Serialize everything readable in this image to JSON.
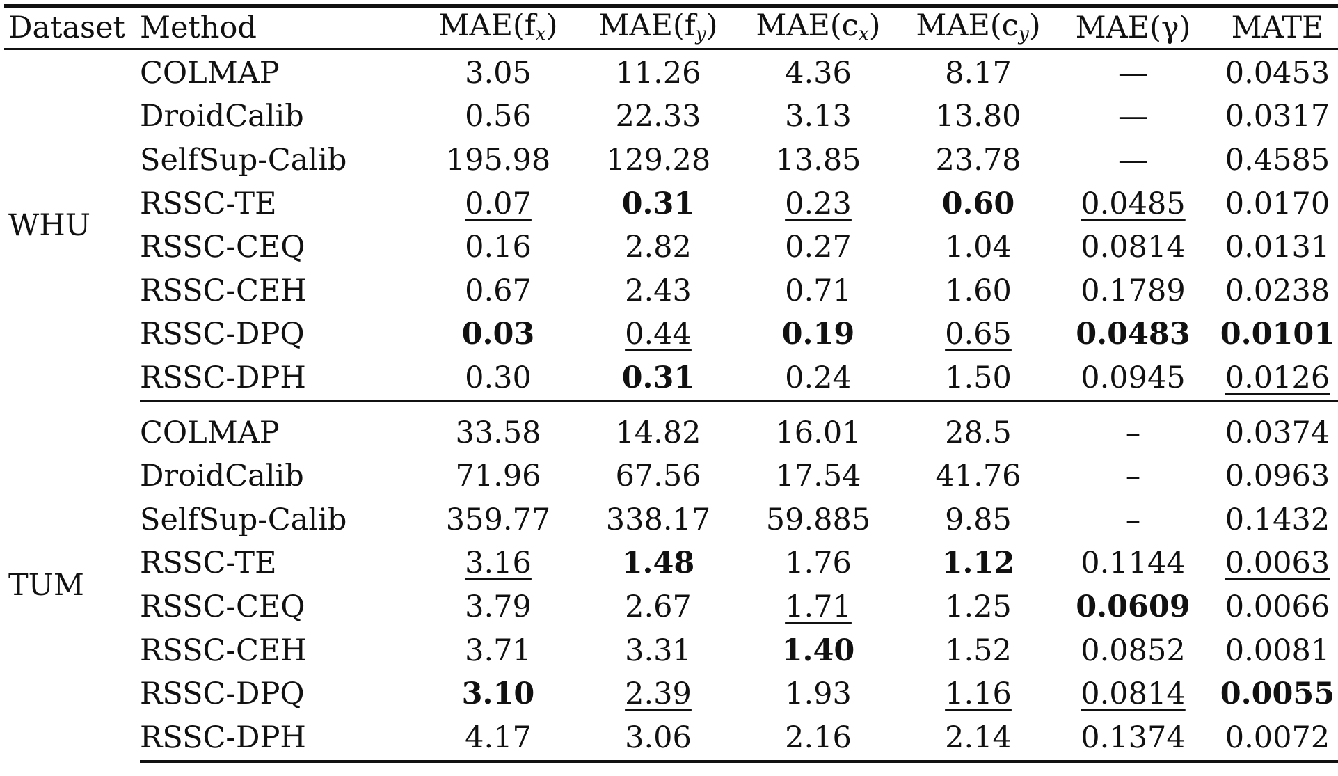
{
  "headers": {
    "dataset": "Dataset",
    "method": "Method",
    "mae_fx": "MAE(f",
    "mae_fx_sub": "x",
    "mae_fy": "MAE(f",
    "mae_fy_sub": "y",
    "mae_cx": "MAE(c",
    "mae_cx_sub": "x",
    "mae_cy": "MAE(c",
    "mae_cy_sub": "y",
    "mae_gamma": "MAE(γ)",
    "mate": "MATE",
    "close_paren": ")"
  },
  "groups": [
    {
      "dataset": "WHU",
      "rows": [
        {
          "method": "COLMAP",
          "fx": "3.05",
          "fy": "11.26",
          "cx": "4.36",
          "cy": "8.17",
          "gamma": "—",
          "mate": "0.0453"
        },
        {
          "method": "DroidCalib",
          "fx": "0.56",
          "fy": "22.33",
          "cx": "3.13",
          "cy": "13.80",
          "gamma": "—",
          "mate": "0.0317"
        },
        {
          "method": "SelfSup-Calib",
          "fx": "195.98",
          "fy": "129.28",
          "cx": "13.85",
          "cy": "23.78",
          "gamma": "—",
          "mate": "0.4585"
        },
        {
          "method": "RSSC-TE",
          "fx": "0.07",
          "fy": "0.31",
          "cx": "0.23",
          "cy": "0.60",
          "gamma": "0.0485",
          "mate": "0.0170"
        },
        {
          "method": "RSSC-CEQ",
          "fx": "0.16",
          "fy": "2.82",
          "cx": "0.27",
          "cy": "1.04",
          "gamma": "0.0814",
          "mate": "0.0131"
        },
        {
          "method": "RSSC-CEH",
          "fx": "0.67",
          "fy": "2.43",
          "cx": "0.71",
          "cy": "1.60",
          "gamma": "0.1789",
          "mate": "0.0238"
        },
        {
          "method": "RSSC-DPQ",
          "fx": "0.03",
          "fy": "0.44",
          "cx": "0.19",
          "cy": "0.65",
          "gamma": "0.0483",
          "mate": "0.0101"
        },
        {
          "method": "RSSC-DPH",
          "fx": "0.30",
          "fy": "0.31",
          "cx": "0.24",
          "cy": "1.50",
          "gamma": "0.0945",
          "mate": "0.0126"
        }
      ]
    },
    {
      "dataset": "TUM",
      "rows": [
        {
          "method": "COLMAP",
          "fx": "33.58",
          "fy": "14.82",
          "cx": "16.01",
          "cy": "28.5",
          "gamma": "–",
          "mate": "0.0374"
        },
        {
          "method": "DroidCalib",
          "fx": "71.96",
          "fy": "67.56",
          "cx": "17.54",
          "cy": "41.76",
          "gamma": "–",
          "mate": "0.0963"
        },
        {
          "method": "SelfSup-Calib",
          "fx": "359.77",
          "fy": "338.17",
          "cx": "59.885",
          "cy": "9.85",
          "gamma": "–",
          "mate": "0.1432"
        },
        {
          "method": "RSSC-TE",
          "fx": "3.16",
          "fy": "1.48",
          "cx": "1.76",
          "cy": "1.12",
          "gamma": "0.1144",
          "mate": "0.0063"
        },
        {
          "method": "RSSC-CEQ",
          "fx": "3.79",
          "fy": "2.67",
          "cx": "1.71",
          "cy": "1.25",
          "gamma": "0.0609",
          "mate": "0.0066"
        },
        {
          "method": "RSSC-CEH",
          "fx": "3.71",
          "fy": "3.31",
          "cx": "1.40",
          "cy": "1.52",
          "gamma": "0.0852",
          "mate": "0.0081"
        },
        {
          "method": "RSSC-DPQ",
          "fx": "3.10",
          "fy": "2.39",
          "cx": "1.93",
          "cy": "1.16",
          "gamma": "0.0814",
          "mate": "0.0055"
        },
        {
          "method": "RSSC-DPH",
          "fx": "4.17",
          "fy": "3.06",
          "cx": "2.16",
          "cy": "2.14",
          "gamma": "0.1374",
          "mate": "0.0072"
        }
      ]
    }
  ]
}
